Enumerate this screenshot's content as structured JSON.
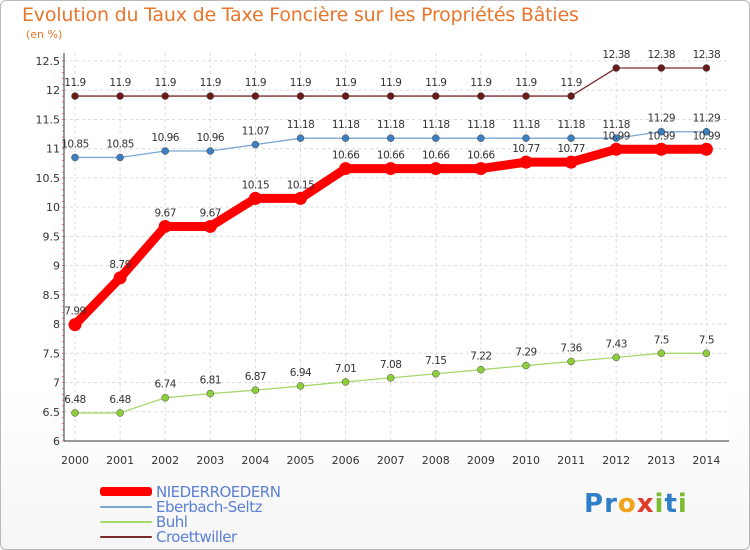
{
  "chart_data": {
    "type": "line",
    "title": "Evolution du Taux de Taxe Foncière sur les Propriétés Bâties",
    "ylabel": "(en %)",
    "xlabel": "",
    "ylim": [
      6,
      12.5
    ],
    "yticks": [
      "6",
      "6.5",
      "7",
      "7.5",
      "8",
      "8.5",
      "9",
      "9.5",
      "10",
      "10.5",
      "11",
      "11.5",
      "12",
      "12.5"
    ],
    "categories": [
      "2000",
      "2001",
      "2002",
      "2003",
      "2004",
      "2005",
      "2006",
      "2007",
      "2008",
      "2009",
      "2010",
      "2011",
      "2012",
      "2013",
      "2014"
    ],
    "grid": true,
    "series": [
      {
        "name": "NIEDERROEDERN",
        "color": "#ff0000",
        "values": [
          7.99,
          8.79,
          9.67,
          9.67,
          10.15,
          10.15,
          10.66,
          10.66,
          10.66,
          10.66,
          10.77,
          10.77,
          10.99,
          10.99,
          10.99
        ],
        "labels": [
          "7.99",
          "8.79",
          "9.67",
          "9.67",
          "10.15",
          "10.15",
          "10.66",
          "10.66",
          "10.66",
          "10.66",
          "10.77",
          "10.77",
          "10.99",
          "10.99",
          "10.99"
        ]
      },
      {
        "name": "Eberbach-Seltz",
        "color": "#7aa7d4",
        "values": [
          10.85,
          10.85,
          10.96,
          10.96,
          11.07,
          11.18,
          11.18,
          11.18,
          11.18,
          11.18,
          11.18,
          11.18,
          11.18,
          11.29,
          11.29
        ],
        "labels": [
          "10.85",
          "10.85",
          "10.96",
          "10.96",
          "11.07",
          "11.18",
          "11.18",
          "11.18",
          "11.18",
          "11.18",
          "11.18",
          "11.18",
          "11.18",
          "11.29",
          "11.29"
        ]
      },
      {
        "name": "Buhl",
        "color": "#a6d86a",
        "values": [
          6.48,
          6.48,
          6.74,
          6.81,
          6.87,
          6.94,
          7.01,
          7.08,
          7.15,
          7.22,
          7.29,
          7.36,
          7.43,
          7.5,
          7.5
        ],
        "labels": [
          "6.48",
          "6.48",
          "6.74",
          "6.81",
          "6.87",
          "6.94",
          "7.01",
          "7.08",
          "7.15",
          "7.22",
          "7.29",
          "7.36",
          "7.43",
          "7.5",
          "7.5"
        ]
      },
      {
        "name": "Croettwiller",
        "color": "#7a2a2a",
        "values": [
          11.9,
          11.9,
          11.9,
          11.9,
          11.9,
          11.9,
          11.9,
          11.9,
          11.9,
          11.9,
          11.9,
          11.9,
          12.38,
          12.38,
          12.38
        ],
        "labels": [
          "11.9",
          "11.9",
          "11.9",
          "11.9",
          "11.9",
          "11.9",
          "11.9",
          "11.9",
          "11.9",
          "11.9",
          "11.9",
          "11.9",
          "12.38",
          "12.38",
          "12.38"
        ]
      }
    ]
  },
  "logo": {
    "letters": [
      "P",
      "r",
      "o",
      "x",
      "i",
      "t",
      "i"
    ]
  }
}
